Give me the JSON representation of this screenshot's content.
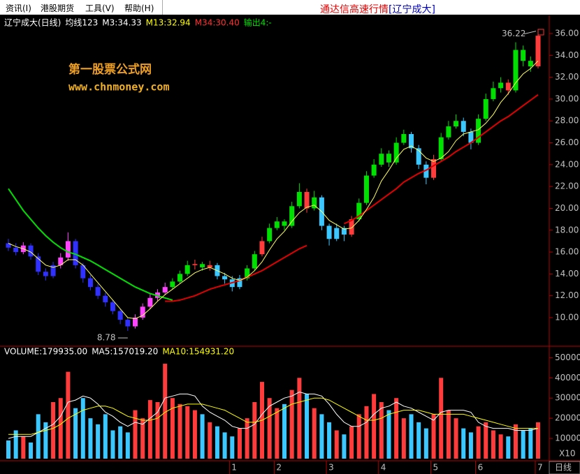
{
  "menu": [
    "资讯(I)",
    "港股期货",
    "工具(V)",
    "帮助(H)"
  ],
  "window_title": {
    "app": "通达信高速行情",
    "stock": "[辽宁成大]"
  },
  "watermark": {
    "name": "第一股票公式网",
    "url": "www.chnmoney.com"
  },
  "footer": {
    "x_scale": "X10",
    "period": "日线"
  },
  "chart_data": [
    {
      "type": "candlestick",
      "title": "辽宁成大(日线)",
      "info": [
        {
          "text": "均线123",
          "color": "#ffffff"
        },
        {
          "text": "M3:34.33",
          "color": "#ffffff"
        },
        {
          "text": "M13:32.94",
          "color": "#ffff00"
        },
        {
          "text": "M34:30.40",
          "color": "#ff3030"
        },
        {
          "text": "输出4:-",
          "color": "#00e000"
        }
      ],
      "categories": [
        null,
        null,
        null,
        null,
        null,
        null,
        null,
        null,
        null,
        null,
        null,
        null,
        null,
        null,
        null,
        null,
        null,
        null,
        null,
        null,
        null,
        null,
        null,
        null,
        null,
        null,
        null,
        null,
        null,
        null,
        "1",
        null,
        null,
        null,
        null,
        null,
        "2",
        null,
        null,
        null,
        null,
        null,
        null,
        "3",
        null,
        null,
        null,
        null,
        null,
        null,
        "4",
        null,
        null,
        null,
        null,
        null,
        null,
        "5",
        null,
        null,
        null,
        null,
        null,
        "6",
        null,
        null,
        null,
        null,
        null,
        null,
        null,
        "7"
      ],
      "ohlc": [
        [
          16.8,
          17.2,
          16.1,
          16.4
        ],
        [
          16.4,
          16.8,
          15.7,
          16.0
        ],
        [
          16.0,
          16.9,
          15.8,
          16.6
        ],
        [
          16.6,
          16.8,
          15.3,
          15.6
        ],
        [
          15.6,
          15.9,
          13.9,
          14.2
        ],
        [
          14.2,
          14.5,
          13.4,
          13.8
        ],
        [
          13.8,
          15.1,
          13.6,
          14.8
        ],
        [
          14.8,
          15.9,
          14.5,
          15.5
        ],
        [
          15.5,
          17.8,
          15.2,
          17.0
        ],
        [
          17.0,
          17.2,
          14.5,
          14.8
        ],
        [
          14.8,
          15.0,
          13.2,
          13.6
        ],
        [
          13.6,
          13.9,
          12.5,
          12.8
        ],
        [
          12.8,
          13.1,
          11.7,
          12.0
        ],
        [
          12.0,
          12.3,
          11.0,
          11.4
        ],
        [
          11.4,
          11.6,
          10.3,
          10.6
        ],
        [
          10.6,
          10.8,
          9.4,
          9.8
        ],
        [
          9.8,
          10.0,
          8.78,
          9.2
        ],
        [
          9.2,
          10.3,
          9.0,
          10.0
        ],
        [
          10.0,
          11.3,
          9.8,
          11.0
        ],
        [
          11.0,
          12.2,
          10.8,
          11.8
        ],
        [
          11.8,
          12.6,
          11.5,
          12.3
        ],
        [
          12.3,
          13.2,
          12.1,
          12.8
        ],
        [
          12.8,
          13.6,
          12.6,
          13.3
        ],
        [
          13.3,
          14.3,
          13.1,
          14.0
        ],
        [
          14.0,
          15.2,
          13.8,
          14.8
        ],
        [
          14.8,
          15.3,
          14.4,
          14.9
        ],
        [
          14.9,
          15.1,
          14.3,
          14.6
        ],
        [
          14.6,
          15.2,
          14.3,
          14.8
        ],
        [
          14.8,
          15.0,
          13.5,
          13.8
        ],
        [
          13.8,
          14.1,
          13.1,
          13.5
        ],
        [
          13.5,
          13.8,
          12.4,
          12.8
        ],
        [
          12.8,
          13.9,
          12.6,
          13.6
        ],
        [
          13.6,
          14.8,
          13.4,
          14.5
        ],
        [
          14.5,
          16.1,
          14.3,
          15.8
        ],
        [
          15.8,
          17.4,
          15.6,
          17.0
        ],
        [
          17.0,
          18.6,
          16.8,
          18.2
        ],
        [
          18.2,
          19.2,
          18.0,
          18.8
        ],
        [
          18.8,
          19.0,
          18.0,
          18.4
        ],
        [
          18.4,
          20.6,
          18.2,
          20.2
        ],
        [
          20.2,
          22.3,
          20.0,
          21.5
        ],
        [
          21.5,
          21.8,
          19.6,
          20.0
        ],
        [
          20.0,
          21.6,
          19.8,
          21.0
        ],
        [
          21.0,
          21.2,
          18.0,
          18.4
        ],
        [
          18.4,
          18.6,
          16.6,
          17.2
        ],
        [
          17.2,
          18.6,
          17.0,
          18.2
        ],
        [
          18.2,
          18.4,
          17.0,
          17.6
        ],
        [
          17.6,
          19.3,
          17.4,
          19.0
        ],
        [
          19.0,
          20.9,
          18.8,
          20.5
        ],
        [
          20.5,
          23.4,
          20.3,
          23.0
        ],
        [
          23.0,
          24.5,
          22.8,
          24.0
        ],
        [
          24.0,
          25.5,
          23.8,
          25.0
        ],
        [
          25.0,
          25.3,
          23.8,
          24.2
        ],
        [
          24.2,
          26.5,
          24.0,
          26.0
        ],
        [
          26.0,
          27.2,
          25.8,
          26.8
        ],
        [
          26.8,
          27.0,
          25.1,
          25.5
        ],
        [
          25.5,
          25.8,
          23.6,
          24.0
        ],
        [
          24.0,
          24.3,
          22.2,
          22.8
        ],
        [
          22.8,
          24.9,
          22.6,
          24.5
        ],
        [
          24.5,
          26.9,
          24.3,
          26.5
        ],
        [
          26.5,
          28.0,
          26.3,
          27.5
        ],
        [
          27.5,
          28.6,
          27.3,
          28.0
        ],
        [
          28.0,
          28.3,
          26.6,
          27.0
        ],
        [
          27.0,
          27.3,
          25.4,
          26.0
        ],
        [
          26.0,
          28.6,
          25.8,
          28.2
        ],
        [
          28.2,
          30.5,
          28.0,
          30.0
        ],
        [
          30.0,
          31.6,
          29.8,
          31.0
        ],
        [
          31.0,
          32.0,
          30.6,
          31.5
        ],
        [
          31.5,
          31.8,
          30.4,
          30.8
        ],
        [
          30.8,
          35.2,
          30.6,
          34.5
        ],
        [
          34.5,
          34.9,
          33.0,
          33.5
        ],
        [
          33.5,
          33.9,
          32.5,
          33.0
        ],
        [
          33.0,
          36.22,
          32.8,
          35.8
        ]
      ],
      "candle_colors": [
        "#3030ff",
        "#3030ff",
        "#ff44ff",
        "#3030ff",
        "#3030ff",
        "#3030ff",
        "#3030ff",
        "#ff44ff",
        "#ff44ff",
        "#3030ff",
        "#3030ff",
        "#3030ff",
        "#3030ff",
        "#3030ff",
        "#3030ff",
        "#3030ff",
        "#3030ff",
        "#ff44ff",
        "#ff44ff",
        "#ff44ff",
        "#ff44ff",
        "#ff44ff",
        "#00e000",
        "#00e000",
        "#00e000",
        "#ff3c3c",
        "#00e000",
        "#ff3c3c",
        "#3cc8ff",
        "#3cc8ff",
        "#3cc8ff",
        "#3cc8ff",
        "#00e000",
        "#00e000",
        "#ff3c3c",
        "#00e000",
        "#00e000",
        "#00e000",
        "#00e000",
        "#00e000",
        "#ff3c3c",
        "#00e000",
        "#3cc8ff",
        "#3cc8ff",
        "#3cc8ff",
        "#3cc8ff",
        "#ff3c3c",
        "#00e000",
        "#00e000",
        "#00e000",
        "#00e000",
        "#00e000",
        "#00e000",
        "#00e000",
        "#3cc8ff",
        "#3cc8ff",
        "#3cc8ff",
        "#ff3c3c",
        "#00e000",
        "#00e000",
        "#00e000",
        "#3cc8ff",
        "#3cc8ff",
        "#00e000",
        "#00e000",
        "#00e000",
        "#00e000",
        "#ff3c3c",
        "#00e000",
        "#00e000",
        "#00e000",
        "#ff3c3c"
      ],
      "series": [
        {
          "color": "#00e000",
          "width": 2,
          "values": [
            21.8,
            20.8,
            19.8,
            19.0,
            18.2,
            17.5,
            16.9,
            16.4,
            16.0,
            15.8,
            15.5,
            15.2,
            14.8,
            14.4,
            14.0,
            13.6,
            13.2,
            12.8,
            12.5,
            12.2,
            12.0,
            11.8,
            11.6,
            null,
            null,
            null,
            null,
            null,
            null,
            null,
            null,
            null,
            null,
            null,
            null,
            null,
            null,
            null,
            null,
            null,
            null,
            null,
            null,
            null,
            null,
            null,
            null,
            null,
            null,
            null,
            null,
            null,
            null,
            null,
            null,
            null,
            null,
            null,
            null,
            null,
            null,
            null,
            null,
            null,
            null,
            null,
            null,
            null,
            null,
            null,
            null,
            null
          ]
        },
        {
          "color": "#e00000",
          "width": 2,
          "values": [
            null,
            null,
            null,
            null,
            null,
            null,
            null,
            null,
            null,
            null,
            null,
            null,
            null,
            null,
            null,
            null,
            null,
            null,
            null,
            null,
            null,
            11.5,
            11.5,
            11.6,
            11.8,
            12.0,
            12.3,
            12.6,
            12.8,
            13.0,
            13.2,
            13.4,
            13.7,
            14.0,
            14.3,
            14.7,
            15.1,
            15.5,
            15.9,
            16.3,
            16.6,
            null,
            null,
            null,
            null,
            18.6,
            18.9,
            19.3,
            19.8,
            20.3,
            20.8,
            21.3,
            21.8,
            22.4,
            22.8,
            23.2,
            23.5,
            23.9,
            24.3,
            24.7,
            25.2,
            25.6,
            26.0,
            26.5,
            27.0,
            27.5,
            28.0,
            28.4,
            28.9,
            29.4,
            29.9,
            30.4
          ]
        },
        {
          "color": "#ffff60",
          "width": 1,
          "values": [
            16.8,
            16.5,
            16.3,
            16.0,
            15.4,
            14.8,
            14.6,
            14.8,
            15.3,
            15.3,
            14.8,
            14.0,
            13.2,
            12.4,
            11.6,
            10.8,
            10.0,
            9.9,
            10.2,
            10.8,
            11.5,
            12.1,
            12.6,
            13.1,
            13.6,
            14.1,
            14.4,
            14.6,
            14.3,
            14.0,
            13.6,
            13.4,
            13.7,
            14.3,
            15.1,
            16.2,
            17.2,
            17.9,
            18.8,
            19.6,
            20.1,
            20.3,
            19.7,
            18.9,
            18.5,
            18.1,
            18.2,
            18.9,
            19.9,
            21.0,
            22.5,
            23.5,
            24.6,
            25.4,
            25.7,
            25.3,
            24.6,
            24.3,
            24.6,
            25.2,
            26.2,
            26.8,
            27.0,
            27.2,
            27.8,
            28.6,
            29.7,
            30.5,
            31.5,
            32.3,
            32.8,
            33.5
          ]
        }
      ],
      "ylim": [
        7.57,
        37.28
      ],
      "yticks": [
        {
          "value": 10,
          "label": "10.00"
        },
        {
          "value": 12,
          "label": "12.00"
        },
        {
          "value": 14,
          "label": "14.00"
        },
        {
          "value": 16,
          "label": "16.00"
        },
        {
          "value": 18,
          "label": "18.00"
        },
        {
          "value": 20,
          "label": "20.00"
        },
        {
          "value": 22,
          "label": "22.00"
        },
        {
          "value": 24,
          "label": "24.00"
        },
        {
          "value": 26,
          "label": "26.00"
        },
        {
          "value": 28,
          "label": "28.00"
        },
        {
          "value": 30,
          "label": "30.00"
        },
        {
          "value": 32,
          "label": "32.00"
        },
        {
          "value": 34,
          "label": "34.00"
        },
        {
          "value": 36,
          "label": "36.00"
        }
      ]
    },
    {
      "type": "volume",
      "title": "VOLUME:179935.00",
      "info": [
        {
          "text": "MA5:157019.20",
          "color": "#ffffff"
        },
        {
          "text": "MA10:154931.20",
          "color": "#ffff00"
        }
      ],
      "up_color": "#ff3c3c",
      "down_color": "#3cc8ff",
      "values": [
        9000,
        14000,
        11000,
        8000,
        22000,
        18000,
        28000,
        30000,
        43000,
        25000,
        30000,
        20000,
        17000,
        22000,
        14000,
        16000,
        13000,
        24000,
        20000,
        29000,
        28000,
        47000,
        30000,
        27000,
        26000,
        24000,
        22000,
        18000,
        16000,
        13000,
        11000,
        15000,
        20000,
        28000,
        38000,
        30000,
        25000,
        27000,
        34000,
        40000,
        32000,
        25000,
        22000,
        18000,
        14000,
        12000,
        16000,
        22000,
        26000,
        32000,
        28000,
        24000,
        30000,
        20000,
        22000,
        18000,
        15000,
        22000,
        40000,
        24000,
        20000,
        15000,
        13000,
        16000,
        18000,
        14000,
        12000,
        11000,
        17000,
        14000,
        15000,
        18000
      ],
      "series": [
        {
          "color": "#ffffff",
          "width": 1,
          "values": [
            10000,
            11000,
            11000,
            11000,
            13000,
            15000,
            17000,
            21000,
            28000,
            29000,
            31000,
            30000,
            27000,
            23000,
            21000,
            18000,
            16000,
            18000,
            17000,
            20000,
            23000,
            30000,
            31000,
            32000,
            32000,
            31000,
            26000,
            23000,
            21000,
            19000,
            16000,
            15000,
            15000,
            17000,
            22000,
            26000,
            28000,
            30000,
            31000,
            33000,
            32000,
            32000,
            31000,
            27000,
            22000,
            18000,
            16000,
            16000,
            18000,
            22000,
            25000,
            26000,
            28000,
            26000,
            25000,
            23000,
            21000,
            19000,
            23000,
            24000,
            24000,
            24000,
            23000,
            18000,
            16000,
            15000,
            15000,
            15000,
            14000,
            14000,
            14000,
            15000
          ]
        },
        {
          "color": "#ffff00",
          "width": 1,
          "values": [
            12000,
            12000,
            12000,
            12000,
            13000,
            14000,
            15000,
            17000,
            20000,
            22000,
            24000,
            25000,
            26000,
            26000,
            25000,
            23000,
            21000,
            20000,
            19000,
            19000,
            20000,
            23000,
            25000,
            26000,
            27000,
            27000,
            27000,
            26000,
            25000,
            24000,
            22000,
            20000,
            18000,
            18000,
            19000,
            21000,
            23000,
            25000,
            27000,
            28000,
            29000,
            30000,
            30000,
            29000,
            27000,
            25000,
            23000,
            21000,
            19000,
            19000,
            20000,
            22000,
            23000,
            24000,
            24000,
            24000,
            23000,
            22000,
            22000,
            22000,
            22000,
            22000,
            21000,
            20000,
            19000,
            18000,
            17000,
            16000,
            15000,
            15000,
            15000,
            15000
          ]
        }
      ],
      "ylim": [
        0,
        56000
      ],
      "yticks": [
        10000,
        20000,
        30000,
        40000,
        50000
      ]
    }
  ]
}
